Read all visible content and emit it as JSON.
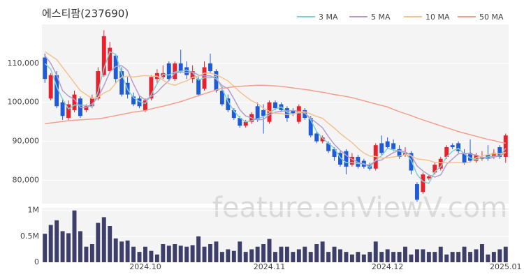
{
  "chart_data": {
    "type": "candlestick",
    "title": "에스티팜(237690)",
    "watermark": "feature.enViewV.com",
    "categories": [
      null,
      null,
      null,
      null,
      null,
      null,
      null,
      null,
      null,
      null,
      null,
      null,
      null,
      null,
      null,
      null,
      null,
      "2024.10",
      null,
      null,
      null,
      null,
      null,
      null,
      null,
      null,
      null,
      null,
      null,
      null,
      null,
      null,
      null,
      null,
      null,
      null,
      null,
      null,
      "2024.11",
      null,
      null,
      null,
      null,
      null,
      null,
      null,
      null,
      null,
      null,
      null,
      null,
      null,
      null,
      null,
      null,
      null,
      null,
      null,
      "2024.12",
      null,
      null,
      null,
      null,
      null,
      null,
      null,
      null,
      null,
      null,
      null,
      null,
      null,
      null,
      null,
      null,
      null,
      null,
      null,
      "2025.01"
    ],
    "open": [
      111500,
      101000,
      107000,
      100000,
      96000,
      98000,
      101000,
      98000,
      99000,
      101000,
      107000,
      108000,
      112000,
      108000,
      105000,
      101500,
      101000,
      98000,
      101000,
      106000,
      106500,
      110000,
      106000,
      110000,
      109000,
      106000,
      106000,
      103500,
      110000,
      108000,
      103000,
      101000,
      98000,
      96000,
      94000,
      95000,
      99000,
      98000,
      95000,
      100000,
      99500,
      98500,
      98000,
      95000,
      98000,
      96000,
      92000,
      90000,
      89500,
      88000,
      87000,
      87500,
      84000,
      86000,
      85000,
      84000,
      83000,
      89500,
      90000,
      89500,
      88000,
      86500,
      87000,
      79000,
      77000,
      80500,
      82000,
      83000,
      86000,
      89000,
      89500,
      87000,
      87000,
      85000,
      85500,
      86500,
      86000,
      88500,
      86000
    ],
    "high": [
      112500,
      107500,
      108000,
      101000,
      100500,
      103000,
      101500,
      99500,
      102000,
      109000,
      118500,
      115500,
      112500,
      109000,
      106500,
      102500,
      101500,
      101000,
      107000,
      108500,
      109500,
      110500,
      110500,
      113500,
      110500,
      109500,
      106500,
      110500,
      112500,
      108500,
      104000,
      102000,
      98500,
      96500,
      95500,
      97500,
      100000,
      99500,
      100500,
      100500,
      100000,
      99000,
      98500,
      99500,
      98500,
      96500,
      92500,
      91500,
      90000,
      88500,
      87500,
      88000,
      87000,
      86500,
      85500,
      84500,
      89500,
      91500,
      91000,
      90500,
      89000,
      88500,
      87500,
      79500,
      82000,
      81500,
      84500,
      86000,
      89000,
      89500,
      90000,
      88000,
      90500,
      87000,
      87500,
      89000,
      88000,
      89000,
      92000
    ],
    "low": [
      105000,
      100500,
      98500,
      95500,
      95500,
      97500,
      96000,
      97500,
      98500,
      100500,
      106500,
      107500,
      105000,
      101500,
      101000,
      99000,
      98500,
      97500,
      100500,
      105000,
      106000,
      105500,
      105500,
      107500,
      106000,
      105000,
      101500,
      103000,
      107500,
      102500,
      99000,
      97500,
      95500,
      93500,
      93500,
      94500,
      95000,
      92000,
      94500,
      98000,
      97500,
      95000,
      96500,
      94500,
      95500,
      91000,
      89500,
      89500,
      87000,
      85000,
      83500,
      81500,
      83500,
      83000,
      83000,
      82500,
      82500,
      86500,
      88000,
      87500,
      85500,
      86000,
      81500,
      74500,
      76500,
      80000,
      81500,
      82500,
      85500,
      88000,
      87000,
      84000,
      84500,
      84500,
      85000,
      85000,
      85500,
      85500,
      84500
    ],
    "close": [
      106000,
      107000,
      99000,
      96500,
      99500,
      102000,
      96500,
      99000,
      101000,
      108000,
      117000,
      114000,
      106000,
      102000,
      102000,
      99500,
      99000,
      100500,
      106500,
      107500,
      107500,
      106000,
      110000,
      108000,
      107000,
      108000,
      102000,
      109000,
      108000,
      103000,
      99500,
      98000,
      96000,
      94000,
      95000,
      97000,
      95500,
      96500,
      100000,
      98500,
      98000,
      96000,
      97000,
      99000,
      96000,
      91500,
      90000,
      91000,
      87500,
      86000,
      84000,
      83500,
      86000,
      83500,
      83500,
      83000,
      89000,
      87000,
      88500,
      88000,
      86000,
      87000,
      82500,
      75000,
      81500,
      81000,
      84000,
      85500,
      88500,
      88500,
      87500,
      84500,
      85000,
      86500,
      86000,
      85500,
      87000,
      86000,
      91500
    ],
    "up_color": "#e8212e",
    "down_color": "#1f5bd6",
    "ylim": [
      74000,
      120000
    ],
    "yticks": [
      {
        "value": 80000,
        "label": "80,000"
      },
      {
        "value": 90000,
        "label": "90,000"
      },
      {
        "value": 100000,
        "label": "100,000"
      },
      {
        "value": 110000,
        "label": "110,000"
      }
    ],
    "grid": true,
    "series": [
      {
        "name": "3 MA",
        "color": "#7fd0d0",
        "values": [
          110000,
          108500,
          104000,
          100800,
          98300,
          99300,
          99300,
          99200,
          98800,
          102700,
          108700,
          113000,
          112300,
          107300,
          103300,
          101200,
          100200,
          99700,
          102000,
          104800,
          107200,
          107000,
          107800,
          108000,
          108300,
          107700,
          105700,
          106300,
          106300,
          106700,
          103500,
          100200,
          97800,
          96000,
          95000,
          95300,
          95800,
          96300,
          97300,
          98300,
          98800,
          97500,
          97000,
          97300,
          97300,
          95500,
          92500,
          90800,
          89500,
          88200,
          85800,
          84500,
          84500,
          84300,
          84300,
          83300,
          85200,
          86300,
          88200,
          87800,
          87500,
          87000,
          85200,
          81500,
          79700,
          79200,
          82200,
          83500,
          86000,
          87500,
          88200,
          86800,
          85700,
          85300,
          85800,
          86000,
          86200,
          86200,
          88200
        ]
      },
      {
        "name": "5 MA",
        "color": "#b59ccc",
        "values": [
          112000,
          110000,
          107000,
          103000,
          101600,
          100800,
          98700,
          98700,
          99600,
          101300,
          104300,
          107800,
          109200,
          109400,
          108200,
          104700,
          101700,
          100600,
          101500,
          102600,
          104200,
          105600,
          107500,
          107800,
          107700,
          107800,
          107000,
          106800,
          106800,
          106000,
          104300,
          103500,
          100900,
          98100,
          96500,
          96000,
          95500,
          95600,
          96800,
          97500,
          97700,
          97800,
          97900,
          97700,
          97200,
          95900,
          94700,
          93500,
          91200,
          89200,
          87700,
          86400,
          85400,
          84600,
          84100,
          83900,
          85000,
          85200,
          86200,
          87100,
          87700,
          87300,
          86400,
          83700,
          82400,
          81400,
          80800,
          81400,
          84100,
          85500,
          86800,
          86900,
          86800,
          86400,
          85900,
          85500,
          86000,
          86200,
          87200
        ]
      },
      {
        "name": "10 MA",
        "color": "#f3c38f",
        "values": [
          113000,
          112000,
          111000,
          109000,
          107000,
          105000,
          103000,
          102000,
          101000,
          101300,
          102400,
          103100,
          104900,
          106500,
          106700,
          106500,
          106700,
          106900,
          106700,
          106700,
          105700,
          104800,
          104400,
          105000,
          105500,
          106400,
          106700,
          107500,
          107500,
          107100,
          106300,
          105500,
          104100,
          102700,
          101500,
          100400,
          99700,
          98500,
          97700,
          97200,
          97100,
          96900,
          97000,
          97500,
          97600,
          97000,
          96400,
          95900,
          94600,
          93400,
          92000,
          90800,
          89700,
          88200,
          87000,
          86200,
          86100,
          85700,
          85800,
          86000,
          86200,
          86600,
          86300,
          85500,
          85300,
          85100,
          84600,
          84500,
          84500,
          84500,
          84600,
          84400,
          84700,
          85800,
          86200,
          86600,
          86800,
          86800,
          87100
        ]
      },
      {
        "name": "50 MA",
        "color": "#f2a08c",
        "values": [
          94500,
          94700,
          94900,
          95100,
          95300,
          95400,
          95500,
          95600,
          95700,
          95800,
          96000,
          96300,
          96600,
          96900,
          97200,
          97500,
          97700,
          97900,
          98300,
          98700,
          99000,
          99400,
          99800,
          100200,
          100700,
          101200,
          101700,
          102200,
          102700,
          103200,
          103600,
          103800,
          104000,
          104100,
          104200,
          104300,
          104400,
          104400,
          104300,
          104200,
          104100,
          103900,
          103700,
          103500,
          103300,
          103100,
          102800,
          102600,
          102300,
          102000,
          101800,
          101500,
          101200,
          100800,
          100400,
          100000,
          99600,
          99200,
          98800,
          98200,
          97600,
          97100,
          96600,
          96000,
          95500,
          95000,
          94500,
          94000,
          93500,
          93000,
          92500,
          92100,
          91700,
          91300,
          90900,
          90500,
          90200,
          89800,
          89500
        ]
      }
    ],
    "volume": {
      "color": "#3e3e6b",
      "ylim": [
        0,
        1050000
      ],
      "yticks": [
        0,
        {
          "value": 500000,
          "label": "0.5M"
        },
        {
          "value": 1000000,
          "label": "1M"
        }
      ],
      "values": [
        550000,
        720000,
        810000,
        600000,
        560000,
        1000000,
        600000,
        300000,
        350000,
        760000,
        870000,
        700000,
        460000,
        400000,
        420000,
        300000,
        200000,
        300000,
        220000,
        150000,
        350000,
        320000,
        350000,
        320000,
        300000,
        330000,
        500000,
        300000,
        350000,
        400000,
        200000,
        250000,
        220000,
        400000,
        200000,
        250000,
        300000,
        350000,
        450000,
        200000,
        300000,
        300000,
        200000,
        250000,
        300000,
        200000,
        350000,
        400000,
        200000,
        300000,
        250000,
        200000,
        150000,
        200000,
        150000,
        200000,
        400000,
        200000,
        250000,
        200000,
        200000,
        300000,
        150000,
        250000,
        250000,
        200000,
        200000,
        300000,
        150000,
        200000,
        200000,
        300000,
        200000,
        250000,
        350000,
        150000,
        200000,
        250000,
        300000
      ]
    }
  }
}
